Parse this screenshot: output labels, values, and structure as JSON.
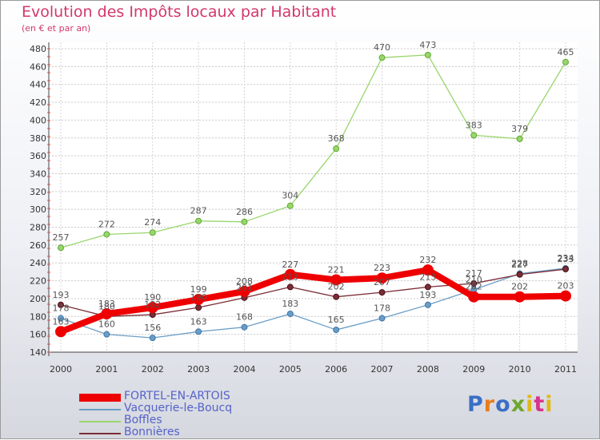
{
  "header": {
    "title": "Evolution des Impôts locaux par Habitant",
    "subtitle": "(en € et par an)"
  },
  "logo": {
    "text": "Proxiti",
    "colors": [
      "#3b6fc6",
      "#e97c1b",
      "#3b6fc6",
      "#6fa72d",
      "#e0b818",
      "#d8338b",
      "#e0b818"
    ]
  },
  "chart_data": {
    "type": "line",
    "title": "Evolution des Impôts locaux par Habitant",
    "subtitle": "(en € et par an)",
    "xlabel": "",
    "ylabel": "",
    "x": [
      "2000",
      "2001",
      "2002",
      "2003",
      "2004",
      "2005",
      "2006",
      "2007",
      "2008",
      "2009",
      "2010",
      "2011"
    ],
    "ylim": [
      140,
      480
    ],
    "yticks": [
      140,
      160,
      180,
      200,
      220,
      240,
      260,
      280,
      300,
      320,
      340,
      360,
      380,
      400,
      420,
      440,
      460,
      480
    ],
    "grid": true,
    "legend_position": "bottom-left",
    "series": [
      {
        "name": "FORTEL-EN-ARTOIS",
        "color": "#ee0000",
        "values": [
          163,
          183,
          190,
          199,
          208,
          227,
          221,
          223,
          232,
          202,
          202,
          203
        ]
      },
      {
        "name": "Vacquerie-le-Boucq",
        "color": "#6b9ec6",
        "values": [
          178,
          160,
          156,
          163,
          168,
          183,
          165,
          178,
          193,
          210,
          228,
          234
        ]
      },
      {
        "name": "Boffles",
        "color": "#99d66c",
        "values": [
          257,
          272,
          274,
          287,
          286,
          304,
          368,
          470,
          473,
          383,
          379,
          465
        ]
      },
      {
        "name": "Bonnières",
        "color": "#7a2d36",
        "values": [
          193,
          180,
          182,
          190,
          201,
          213,
          202,
          207,
          213,
          217,
          227,
          233
        ]
      }
    ]
  }
}
